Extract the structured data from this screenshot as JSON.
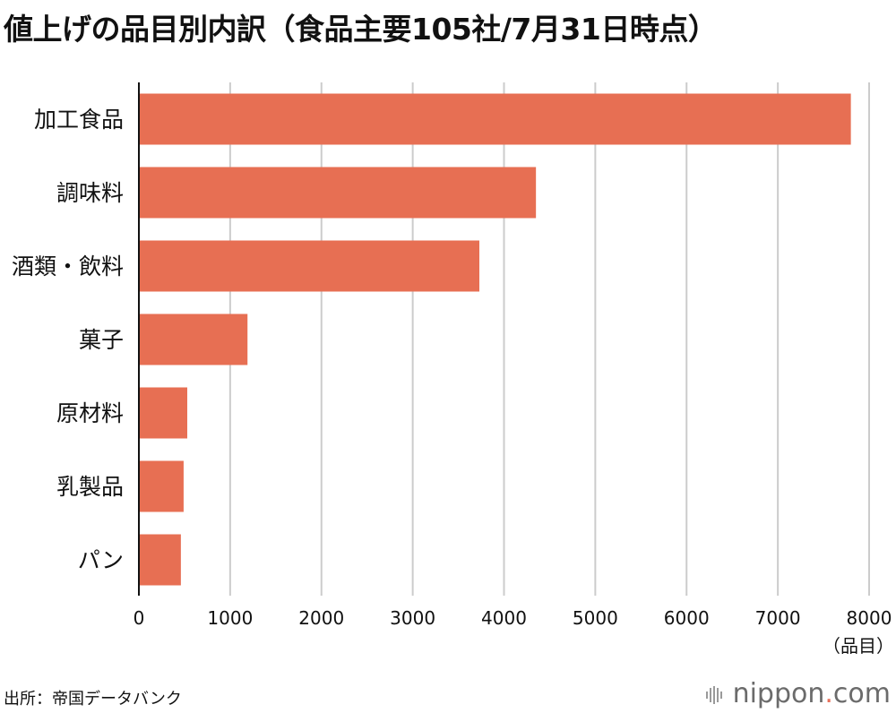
{
  "title": "値上げの品目別内訳（食品主要105社/7月31日時点）",
  "source": "出所：帝国データバンク",
  "logo": {
    "name": "nippon",
    "dot": ".",
    "tld": "com",
    "icon": "nippon-logo-icon"
  },
  "colors": {
    "bar": "#e76f53",
    "grid": "#cccccc",
    "axis": "#111111"
  },
  "chart_data": {
    "type": "bar",
    "orientation": "horizontal",
    "title": "値上げの品目別内訳（食品主要105社/7月31日時点）",
    "categories": [
      "加工食品",
      "調味料",
      "酒類・飲料",
      "菓子",
      "原材料",
      "乳製品",
      "パン"
    ],
    "values": [
      7800,
      4350,
      3730,
      1190,
      530,
      490,
      460
    ],
    "xlim": [
      0,
      8000
    ],
    "xticks": [
      0,
      1000,
      2000,
      3000,
      4000,
      5000,
      6000,
      7000,
      8000
    ],
    "xlabel": "（品目）",
    "ylabel": "",
    "grid": true,
    "legend": "none"
  }
}
